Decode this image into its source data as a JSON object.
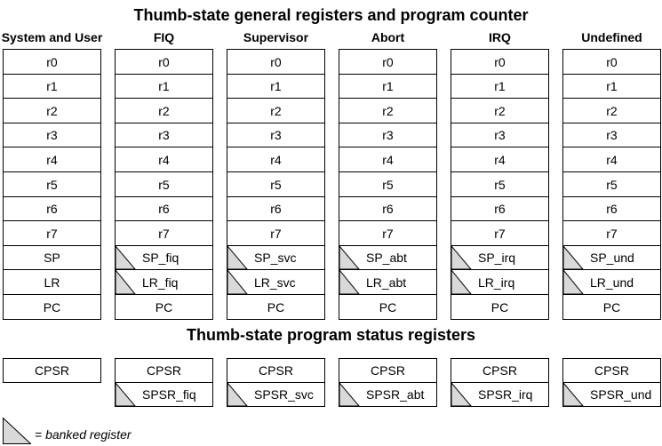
{
  "title_registers": "Thumb-state general registers and program counter",
  "title_status": "Thumb-state program status registers",
  "modes": [
    {
      "name": "System and User",
      "registers": [
        {
          "label": "r0",
          "banked": false
        },
        {
          "label": "r1",
          "banked": false
        },
        {
          "label": "r2",
          "banked": false
        },
        {
          "label": "r3",
          "banked": false
        },
        {
          "label": "r4",
          "banked": false
        },
        {
          "label": "r5",
          "banked": false
        },
        {
          "label": "r6",
          "banked": false
        },
        {
          "label": "r7",
          "banked": false
        },
        {
          "label": "SP",
          "banked": false
        },
        {
          "label": "LR",
          "banked": false
        },
        {
          "label": "PC",
          "banked": false
        }
      ],
      "status": [
        {
          "label": "CPSR",
          "banked": false
        }
      ]
    },
    {
      "name": "FIQ",
      "registers": [
        {
          "label": "r0",
          "banked": false
        },
        {
          "label": "r1",
          "banked": false
        },
        {
          "label": "r2",
          "banked": false
        },
        {
          "label": "r3",
          "banked": false
        },
        {
          "label": "r4",
          "banked": false
        },
        {
          "label": "r5",
          "banked": false
        },
        {
          "label": "r6",
          "banked": false
        },
        {
          "label": "r7",
          "banked": false
        },
        {
          "label": "SP_fiq",
          "banked": true
        },
        {
          "label": "LR_fiq",
          "banked": true
        },
        {
          "label": "PC",
          "banked": false
        }
      ],
      "status": [
        {
          "label": "CPSR",
          "banked": false
        },
        {
          "label": "SPSR_fiq",
          "banked": true
        }
      ]
    },
    {
      "name": "Supervisor",
      "registers": [
        {
          "label": "r0",
          "banked": false
        },
        {
          "label": "r1",
          "banked": false
        },
        {
          "label": "r2",
          "banked": false
        },
        {
          "label": "r3",
          "banked": false
        },
        {
          "label": "r4",
          "banked": false
        },
        {
          "label": "r5",
          "banked": false
        },
        {
          "label": "r6",
          "banked": false
        },
        {
          "label": "r7",
          "banked": false
        },
        {
          "label": "SP_svc",
          "banked": true
        },
        {
          "label": "LR_svc",
          "banked": true
        },
        {
          "label": "PC",
          "banked": false
        }
      ],
      "status": [
        {
          "label": "CPSR",
          "banked": false
        },
        {
          "label": "SPSR_svc",
          "banked": true
        }
      ]
    },
    {
      "name": "Abort",
      "registers": [
        {
          "label": "r0",
          "banked": false
        },
        {
          "label": "r1",
          "banked": false
        },
        {
          "label": "r2",
          "banked": false
        },
        {
          "label": "r3",
          "banked": false
        },
        {
          "label": "r4",
          "banked": false
        },
        {
          "label": "r5",
          "banked": false
        },
        {
          "label": "r6",
          "banked": false
        },
        {
          "label": "r7",
          "banked": false
        },
        {
          "label": "SP_abt",
          "banked": true
        },
        {
          "label": "LR_abt",
          "banked": true
        },
        {
          "label": "PC",
          "banked": false
        }
      ],
      "status": [
        {
          "label": "CPSR",
          "banked": false
        },
        {
          "label": "SPSR_abt",
          "banked": true
        }
      ]
    },
    {
      "name": "IRQ",
      "registers": [
        {
          "label": "r0",
          "banked": false
        },
        {
          "label": "r1",
          "banked": false
        },
        {
          "label": "r2",
          "banked": false
        },
        {
          "label": "r3",
          "banked": false
        },
        {
          "label": "r4",
          "banked": false
        },
        {
          "label": "r5",
          "banked": false
        },
        {
          "label": "r6",
          "banked": false
        },
        {
          "label": "r7",
          "banked": false
        },
        {
          "label": "SP_irq",
          "banked": true
        },
        {
          "label": "LR_irq",
          "banked": true
        },
        {
          "label": "PC",
          "banked": false
        }
      ],
      "status": [
        {
          "label": "CPSR",
          "banked": false
        },
        {
          "label": "SPSR_irq",
          "banked": true
        }
      ]
    },
    {
      "name": "Undefined",
      "registers": [
        {
          "label": "r0",
          "banked": false
        },
        {
          "label": "r1",
          "banked": false
        },
        {
          "label": "r2",
          "banked": false
        },
        {
          "label": "r3",
          "banked": false
        },
        {
          "label": "r4",
          "banked": false
        },
        {
          "label": "r5",
          "banked": false
        },
        {
          "label": "r6",
          "banked": false
        },
        {
          "label": "r7",
          "banked": false
        },
        {
          "label": "SP_und",
          "banked": true
        },
        {
          "label": "LR_und",
          "banked": true
        },
        {
          "label": "PC",
          "banked": false
        }
      ],
      "status": [
        {
          "label": "CPSR",
          "banked": false
        },
        {
          "label": "SPSR_und",
          "banked": true
        }
      ]
    }
  ],
  "legend": {
    "label": "= banked register"
  },
  "colors": {
    "border": "#000000",
    "banked_fill": "#d9d9d9",
    "background": "#ffffff"
  }
}
